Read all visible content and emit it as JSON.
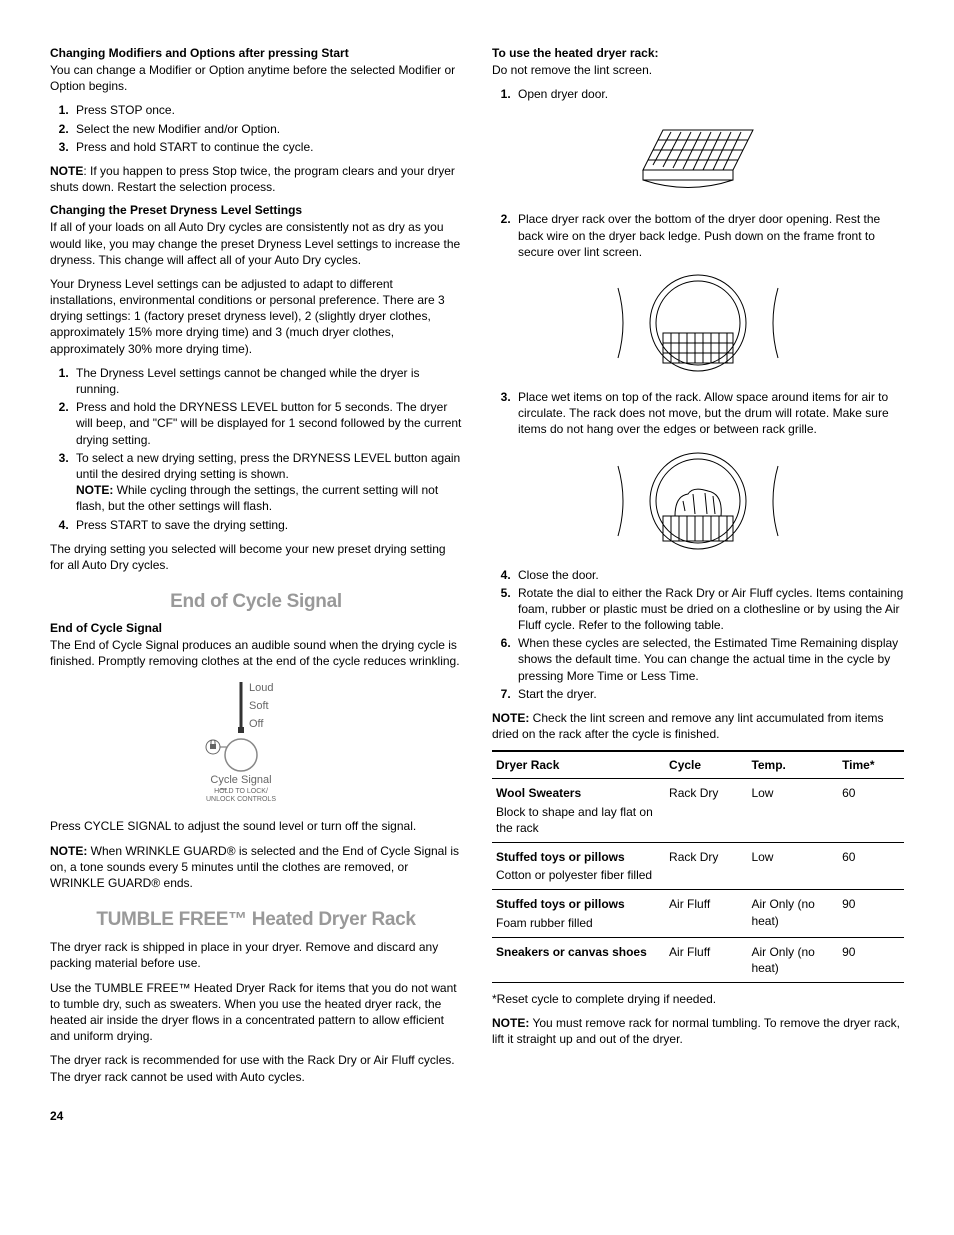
{
  "left": {
    "h1": "Changing Modifiers and Options after pressing Start",
    "p1": "You can change a Modifier or Option anytime before the selected Modifier or Option begins.",
    "ol1": [
      "Press STOP once.",
      "Select the new Modifier and/or Option.",
      "Press and hold START to continue the cycle."
    ],
    "note1_label": "NOTE",
    "note1": ": If you happen to press Stop twice, the program clears and your dryer shuts down. Restart the selection process.",
    "h2": "Changing the Preset Dryness Level Settings",
    "p2": "If all of your loads on all Auto Dry cycles are consistently not as dry as you would like, you may change the preset Dryness Level settings to increase the dryness. This change will affect all of your Auto Dry cycles.",
    "p3": "Your Dryness Level settings can be adjusted to adapt to different installations, environmental conditions or personal preference. There are 3 drying settings: 1 (factory preset dryness level), 2 (slightly dryer clothes, approximately 15% more drying time) and 3 (much dryer clothes, approximately 30% more drying time).",
    "ol2": [
      "The Dryness Level settings cannot be changed while the dryer is running.",
      "Press and hold the DRYNESS LEVEL button for 5 seconds. The dryer will beep, and \"CF\" will be displayed for 1 second followed by the current drying setting.",
      "To select a new drying setting, press the DRYNESS LEVEL button again until the desired drying setting is shown. ",
      "Press START to save the drying setting."
    ],
    "ol2_item3_note_label": "NOTE:",
    "ol2_item3_note": " While cycling through the settings, the current setting will not flash, but the other settings will flash.",
    "p4": "The drying setting you selected will become your new preset drying setting for all Auto Dry cycles.",
    "sec1_title": "End of Cycle Signal",
    "h3": "End of Cycle Signal",
    "p5": "The End of Cycle Signal produces an audible sound when the drying cycle is finished. Promptly removing clothes at the end of the cycle reduces wrinkling.",
    "ctrl": {
      "loud": "Loud",
      "soft": "Soft",
      "off": "Off",
      "label": "Cycle Signal",
      "sub": "HOLD TO LOCK/\nUNLOCK CONTROLS"
    },
    "p6": "Press CYCLE SIGNAL to adjust the sound level or turn off the signal.",
    "note2_label": "NOTE:",
    "note2": " When WRINKLE GUARD® is selected and the End of Cycle Signal is on, a tone sounds every 5 minutes until the clothes are removed, or WRINKLE GUARD® ends.",
    "sec2_title": "TUMBLE FREE™ Heated Dryer Rack",
    "p7": "The dryer rack is shipped in place in your dryer. Remove and discard any packing material before use.",
    "p8": "Use the TUMBLE FREE™ Heated Dryer Rack for items that you do not want to tumble dry, such as sweaters. When you use the heated dryer rack, the heated air inside the dryer flows in a concentrated pattern to allow efficient and uniform drying.",
    "p9": "The dryer rack is recommended for use with the Rack Dry or Air Fluff cycles. The dryer rack cannot be used with Auto cycles."
  },
  "right": {
    "h1": "To use the heated dryer rack:",
    "p1": "Do not remove the lint screen.",
    "steps": [
      "Open dryer door.",
      "Place dryer rack over the bottom of the dryer door opening. Rest the back wire on the dryer back ledge. Push down on the frame front to secure over lint screen.",
      "Place wet items on top of the rack. Allow space around items for air to circulate. The rack does not move, but the drum will rotate. Make sure items do not hang over the edges or between rack grille.",
      "Close the door.",
      "Rotate the dial to either the Rack Dry or Air Fluff cycles. Items containing foam, rubber or plastic must be dried on a clothesline or by using the Air Fluff cycle. Refer to the following table.",
      "When these cycles are selected, the Estimated Time Remaining display shows the default time. You can change the actual time in the cycle by pressing More Time or Less Time.",
      "Start the dryer."
    ],
    "note_label": "NOTE:",
    "note": " Check the lint screen and remove any lint accumulated from items dried on the rack after the cycle is finished.",
    "table": {
      "headers": [
        "Dryer Rack",
        "Cycle",
        "Temp.",
        "Time*"
      ],
      "rows": [
        {
          "item": "Wool Sweaters",
          "sub": "Block to shape and lay flat on the rack",
          "cycle": "Rack Dry",
          "temp": "Low",
          "time": "60"
        },
        {
          "item": "Stuffed toys or pillows",
          "sub": "Cotton or polyester fiber filled",
          "cycle": "Rack Dry",
          "temp": "Low",
          "time": "60"
        },
        {
          "item": "Stuffed toys or pillows",
          "sub": "Foam rubber filled",
          "cycle": "Air Fluff",
          "temp": "Air Only (no heat)",
          "time": "90"
        },
        {
          "item": "Sneakers or canvas shoes",
          "sub": "",
          "cycle": "Air Fluff",
          "temp": "Air Only (no heat)",
          "time": "90"
        }
      ]
    },
    "footnote": "*Reset cycle to complete drying if needed.",
    "note2_label": "NOTE:",
    "note2": " You must remove rack for normal tumbling. To remove the dryer rack, lift it straight up and out of the dryer."
  },
  "page_number": "24"
}
